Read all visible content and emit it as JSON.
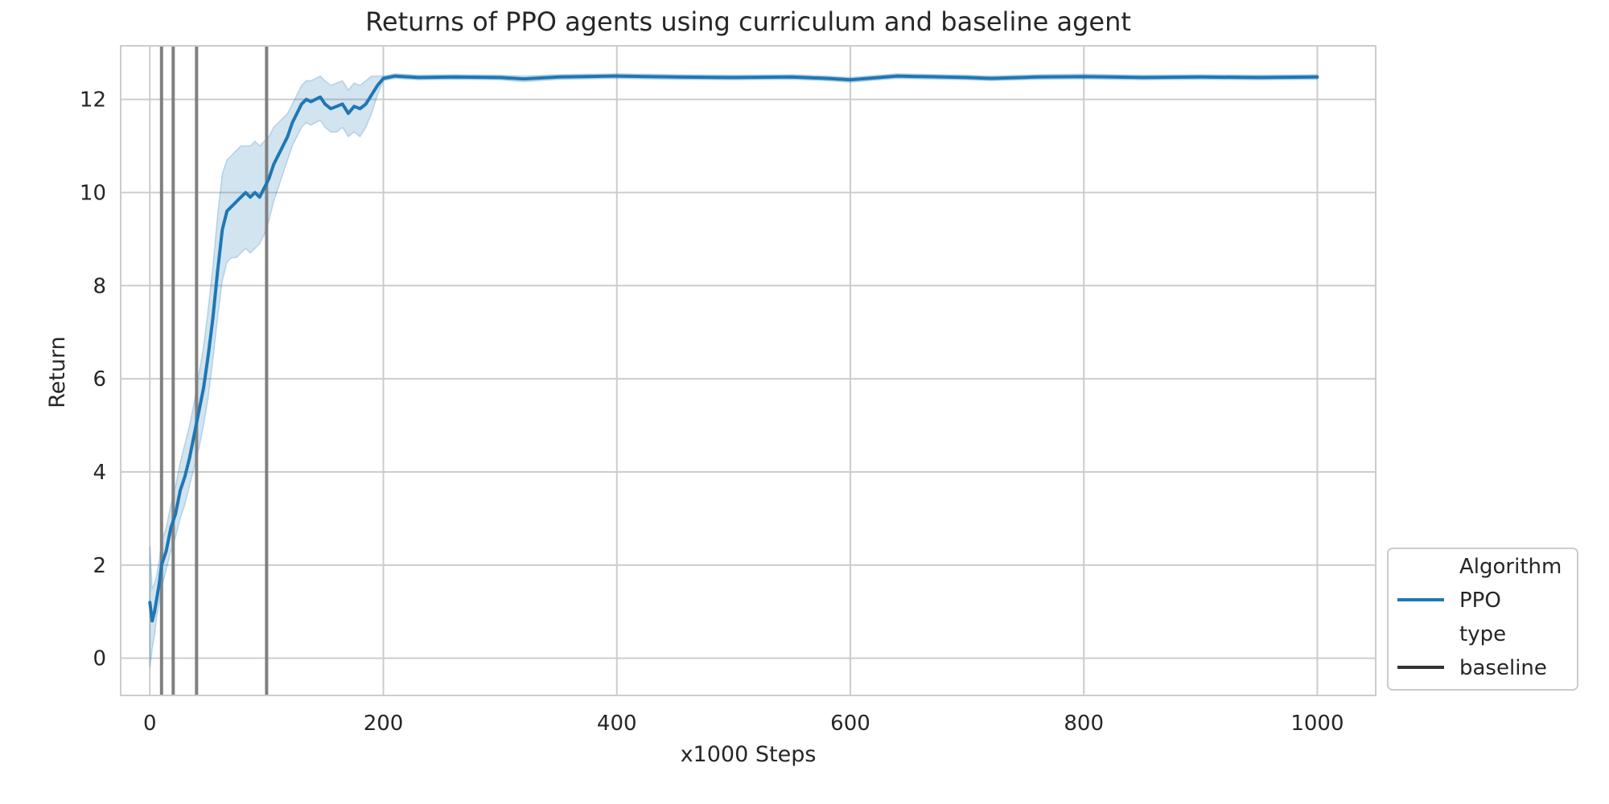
{
  "chart_data": {
    "type": "line",
    "title": "Returns of PPO agents using curriculum and baseline agent",
    "xlabel": "x1000 Steps",
    "ylabel": "Return",
    "xlim": [
      -25,
      1050
    ],
    "ylim": [
      -0.8,
      13.15
    ],
    "xticks": [
      0,
      200,
      400,
      600,
      800,
      1000
    ],
    "yticks": [
      0,
      2,
      4,
      6,
      8,
      10,
      12
    ],
    "xtick_labels": [
      "0",
      "200",
      "400",
      "600",
      "800",
      "1000"
    ],
    "ytick_labels": [
      "0",
      "2",
      "4",
      "6",
      "8",
      "10",
      "12"
    ],
    "grid": true,
    "legend_position": "lower-right, outside plot",
    "legend": [
      {
        "label": "Algorithm",
        "kind": "header"
      },
      {
        "label": "PPO",
        "kind": "line",
        "color": "#1f77b4"
      },
      {
        "label": "type",
        "kind": "header"
      },
      {
        "label": "baseline",
        "kind": "line",
        "color": "#333333"
      }
    ],
    "vlines": {
      "x": [
        10,
        20,
        40,
        100
      ],
      "color": "#808080"
    },
    "series": [
      {
        "name": "PPO",
        "color": "#1f77b4",
        "band_color": "#1f77b4",
        "x": [
          0,
          2,
          4,
          6,
          8,
          10,
          14,
          18,
          22,
          26,
          30,
          34,
          38,
          42,
          46,
          50,
          54,
          58,
          62,
          66,
          70,
          74,
          78,
          82,
          86,
          90,
          94,
          98,
          102,
          106,
          110,
          114,
          118,
          122,
          126,
          130,
          134,
          138,
          142,
          146,
          150,
          155,
          160,
          165,
          170,
          175,
          180,
          185,
          190,
          195,
          200,
          210,
          230,
          260,
          300,
          320,
          350,
          400,
          450,
          500,
          550,
          580,
          600,
          640,
          700,
          720,
          760,
          800,
          850,
          900,
          950,
          1000
        ],
        "y": [
          1.2,
          0.8,
          1.0,
          1.3,
          1.6,
          2.0,
          2.3,
          2.8,
          3.1,
          3.6,
          3.9,
          4.3,
          4.8,
          5.3,
          5.8,
          6.5,
          7.3,
          8.3,
          9.2,
          9.6,
          9.7,
          9.8,
          9.9,
          10.0,
          9.9,
          10.0,
          9.9,
          10.1,
          10.3,
          10.6,
          10.8,
          11.0,
          11.2,
          11.5,
          11.7,
          11.9,
          12.0,
          11.95,
          12.0,
          12.05,
          11.9,
          11.8,
          11.85,
          11.9,
          11.7,
          11.85,
          11.8,
          11.9,
          12.1,
          12.3,
          12.45,
          12.5,
          12.47,
          12.48,
          12.47,
          12.44,
          12.48,
          12.5,
          12.48,
          12.47,
          12.48,
          12.45,
          12.42,
          12.5,
          12.47,
          12.45,
          12.48,
          12.49,
          12.47,
          12.48,
          12.47,
          12.48
        ],
        "lower": [
          -0.2,
          0.2,
          0.5,
          0.9,
          1.2,
          1.5,
          1.9,
          2.3,
          2.6,
          3.0,
          3.3,
          3.7,
          4.1,
          4.5,
          5.0,
          5.6,
          6.4,
          7.3,
          8.1,
          8.5,
          8.6,
          8.6,
          8.7,
          8.8,
          8.7,
          8.8,
          8.9,
          9.1,
          9.4,
          9.8,
          10.1,
          10.4,
          10.7,
          11.0,
          11.2,
          11.4,
          11.5,
          11.45,
          11.5,
          11.55,
          11.4,
          11.3,
          11.3,
          11.4,
          11.2,
          11.3,
          11.2,
          11.4,
          11.7,
          12.1,
          12.4,
          12.45,
          12.42,
          12.43,
          12.42,
          12.38,
          12.43,
          12.45,
          12.43,
          12.42,
          12.43,
          12.4,
          12.37,
          12.45,
          12.42,
          12.4,
          12.43,
          12.44,
          12.42,
          12.43,
          12.42,
          12.43
        ],
        "upper": [
          2.4,
          1.5,
          1.6,
          1.8,
          2.1,
          2.5,
          2.8,
          3.3,
          3.7,
          4.2,
          4.6,
          5.0,
          5.5,
          6.1,
          6.7,
          7.5,
          8.4,
          9.5,
          10.4,
          10.7,
          10.8,
          10.9,
          11.0,
          11.0,
          11.0,
          11.1,
          11.0,
          11.1,
          11.2,
          11.4,
          11.5,
          11.6,
          11.7,
          11.9,
          12.1,
          12.3,
          12.4,
          12.4,
          12.45,
          12.5,
          12.4,
          12.3,
          12.35,
          12.4,
          12.2,
          12.35,
          12.3,
          12.4,
          12.5,
          12.5,
          12.5,
          12.55,
          12.52,
          12.53,
          12.52,
          12.5,
          12.53,
          12.55,
          12.53,
          12.52,
          12.53,
          12.5,
          12.47,
          12.55,
          12.52,
          12.5,
          12.53,
          12.54,
          12.52,
          12.53,
          12.52,
          12.53
        ]
      }
    ]
  }
}
